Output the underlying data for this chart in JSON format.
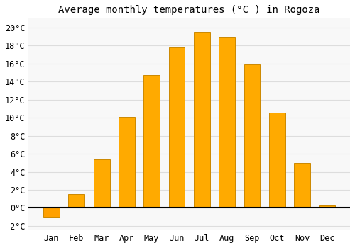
{
  "title": "Average monthly temperatures (°C ) in Rogoza",
  "months": [
    "Jan",
    "Feb",
    "Mar",
    "Apr",
    "May",
    "Jun",
    "Jul",
    "Aug",
    "Sep",
    "Oct",
    "Nov",
    "Dec"
  ],
  "temperatures": [
    -1.0,
    1.5,
    5.4,
    10.1,
    14.7,
    17.8,
    19.5,
    19.0,
    15.9,
    10.6,
    5.0,
    0.3
  ],
  "bar_color_positive": "#FFAA00",
  "bar_color_negative": "#FFA000",
  "bar_edge_color": "#CC8800",
  "background_color": "#FFFFFF",
  "plot_bg_color": "#F8F8F8",
  "grid_color": "#DDDDDD",
  "ylim": [
    -2.5,
    21.0
  ],
  "yticks": [
    -2,
    0,
    2,
    4,
    6,
    8,
    10,
    12,
    14,
    16,
    18,
    20
  ],
  "title_fontsize": 10,
  "tick_fontsize": 8.5,
  "bar_width": 0.65
}
